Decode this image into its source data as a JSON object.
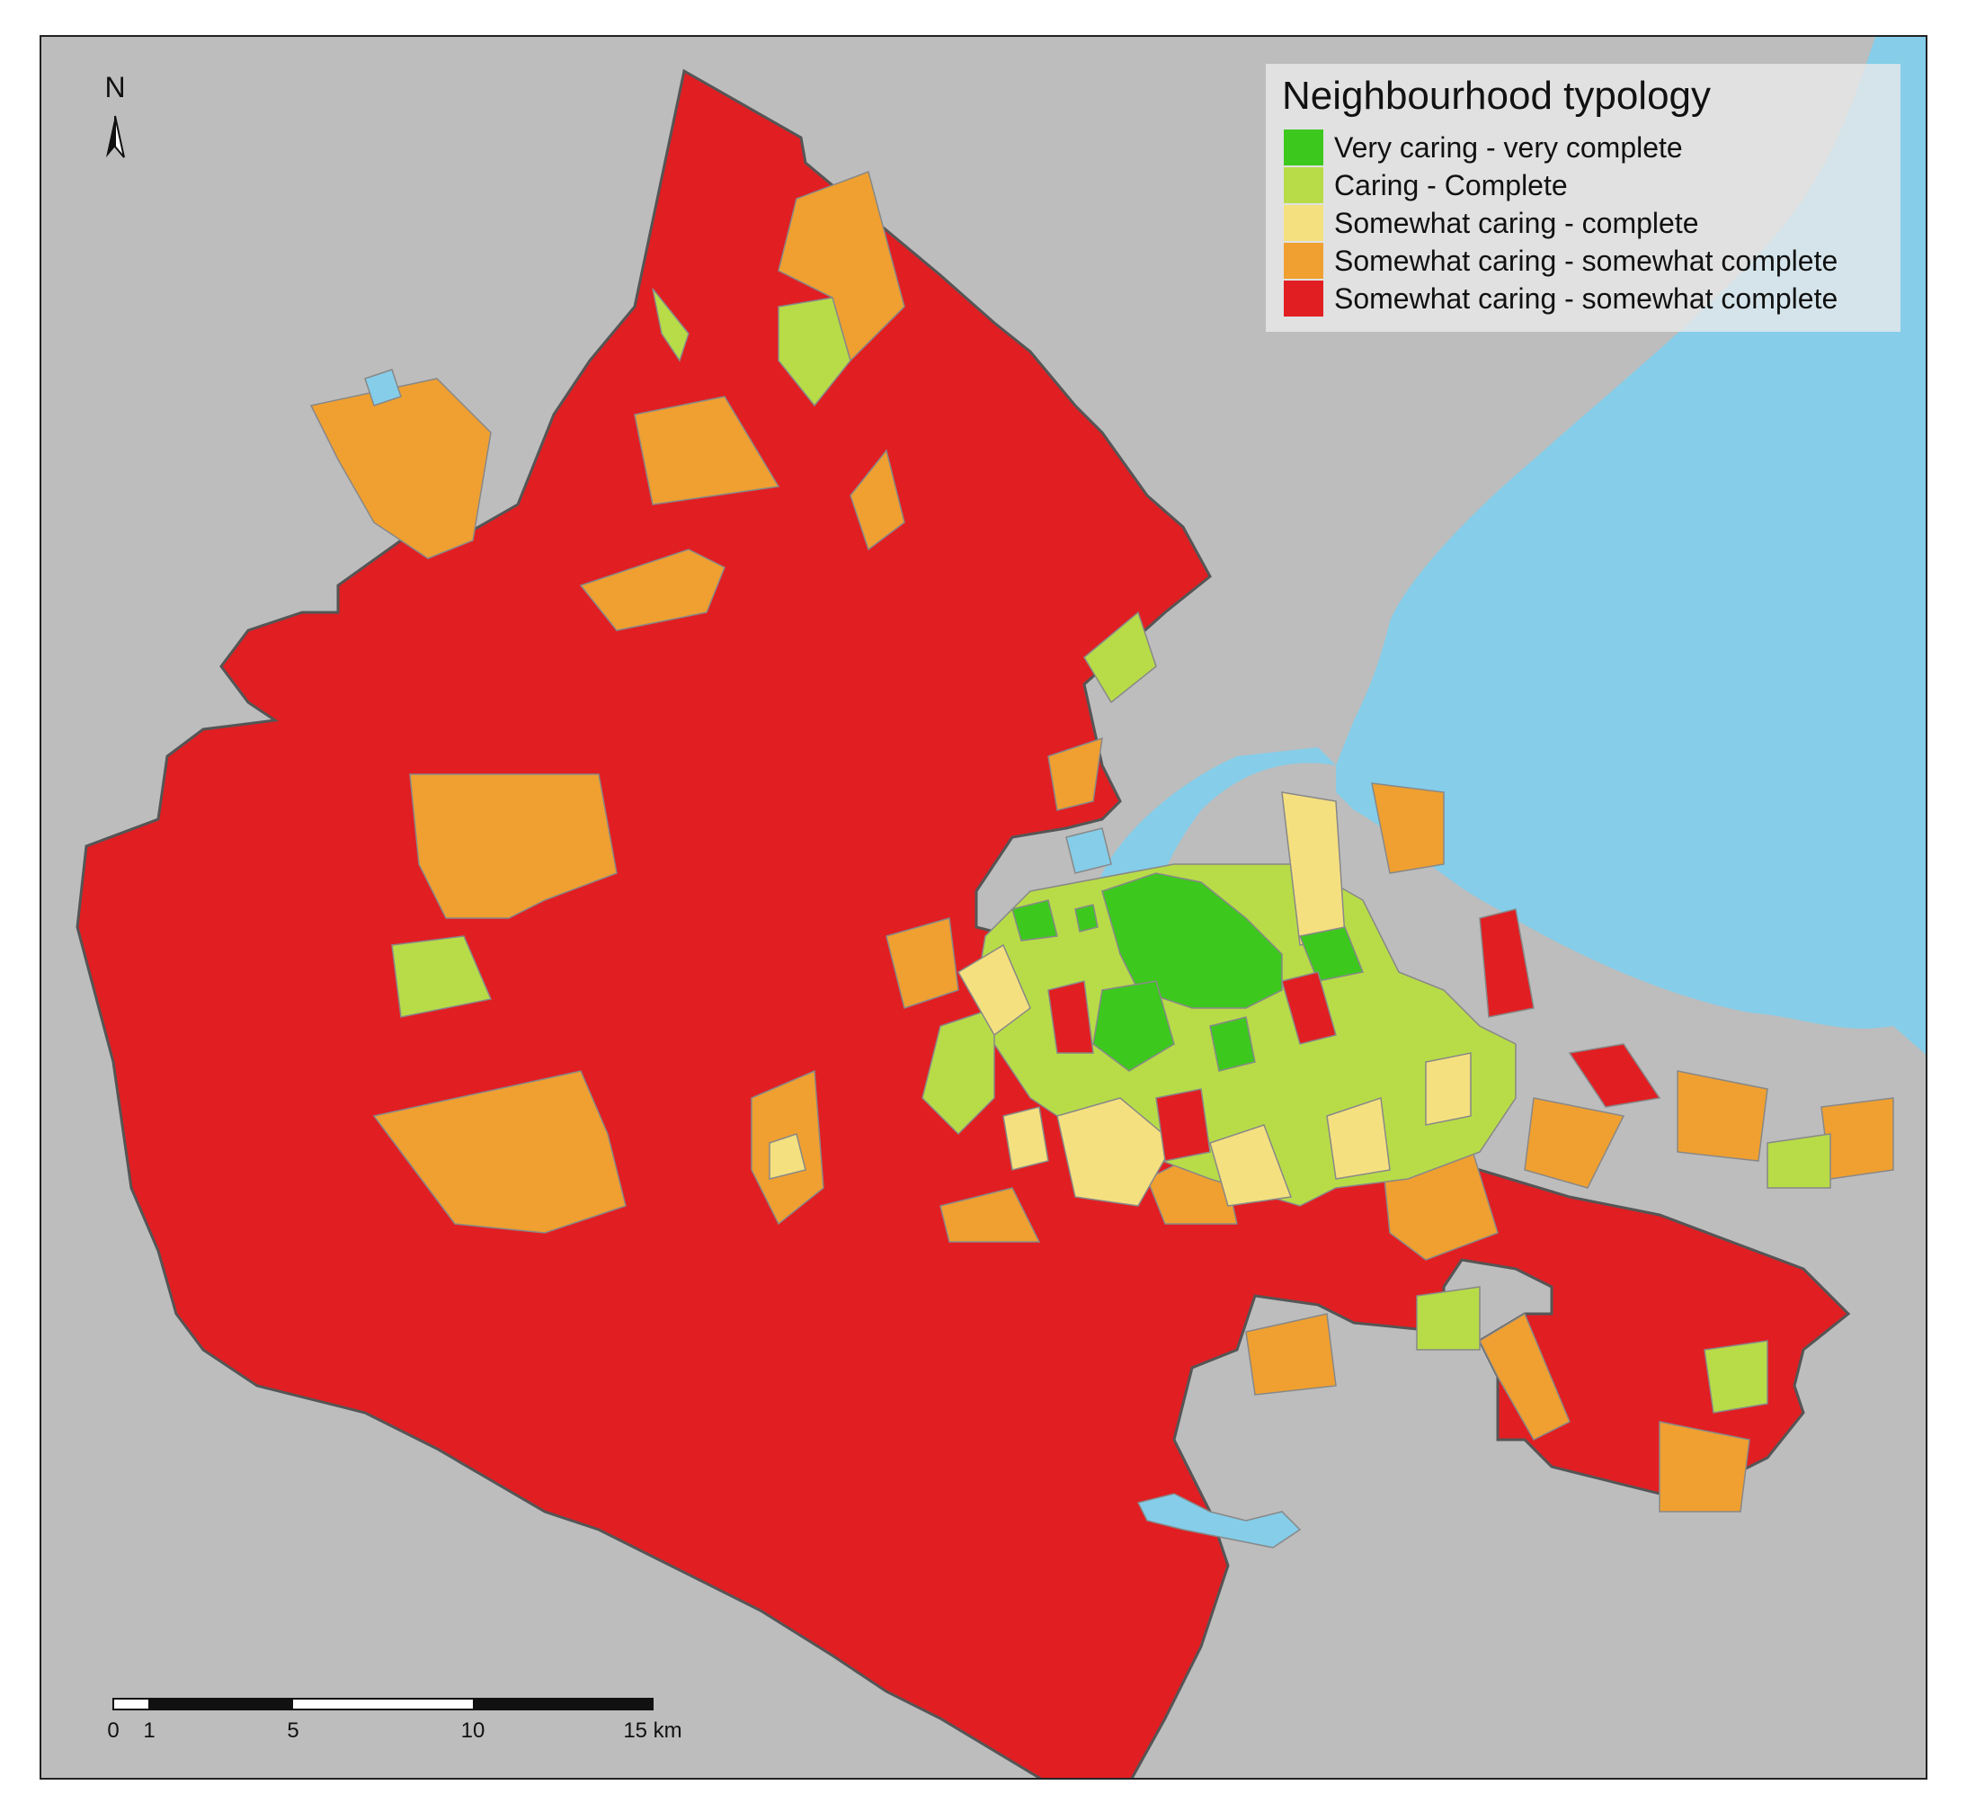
{
  "legend": {
    "title": "Neighbourhood typology",
    "items": [
      {
        "label": "Very caring - very complete",
        "color": "#3dc81e"
      },
      {
        "label": "Caring - Complete",
        "color": "#b8dc48"
      },
      {
        "label": "Somewhat caring - complete",
        "color": "#f5e080"
      },
      {
        "label": "Somewhat caring - somewhat complete",
        "color": "#f0a030"
      },
      {
        "label": "Somewhat caring - somewhat complete",
        "color": "#e11e22"
      }
    ]
  },
  "north_arrow": {
    "letter": "N"
  },
  "scale_bar": {
    "labels": [
      "0",
      "1",
      "5",
      "10",
      "15 km"
    ]
  },
  "colors": {
    "background": "#bdbdbd",
    "water": "#85cde9",
    "boundary": "#555555"
  }
}
